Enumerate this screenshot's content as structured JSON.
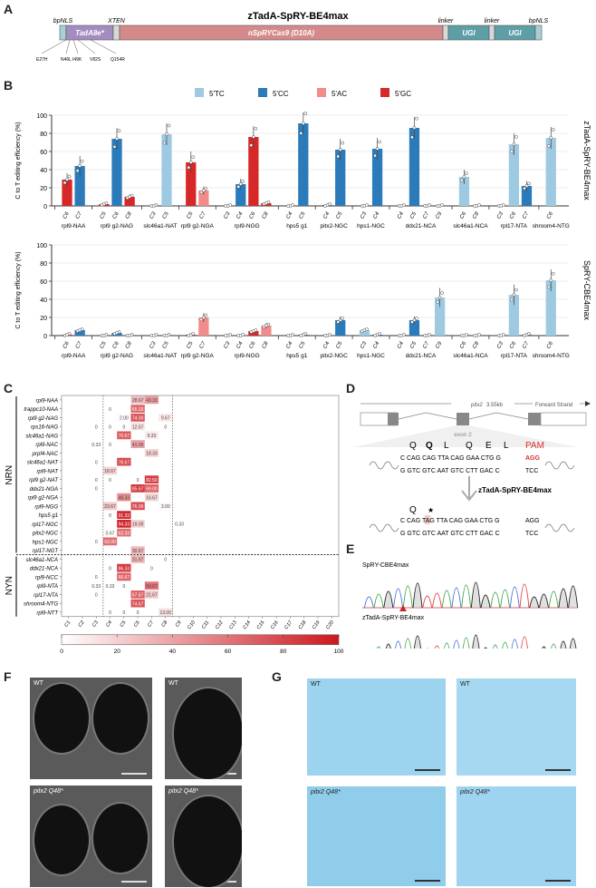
{
  "panels": {
    "A": {
      "label": "A",
      "title": "zTadA-SpRY-BE4max",
      "segments": [
        {
          "name": "bpNLS",
          "label": "",
          "color": "#a8d0d4",
          "top_label": "bpNLS"
        },
        {
          "name": "TadA8e",
          "label": "TadA8e*",
          "color": "#a58cc0",
          "top_label": ""
        },
        {
          "name": "XTEN",
          "label": "",
          "color": "#d8d8d8",
          "top_label": "XTEN"
        },
        {
          "name": "nSpRYCas9",
          "label": "nSpRYCas9 (D10A)",
          "color": "#d48a8a",
          "top_label": ""
        },
        {
          "name": "linker1",
          "label": "",
          "color": "#d8d8d8",
          "top_label": "linker"
        },
        {
          "name": "UGI1",
          "label": "UGI",
          "color": "#5e9ea6",
          "top_label": ""
        },
        {
          "name": "linker2",
          "label": "",
          "color": "#d8d8d8",
          "top_label": "linker"
        },
        {
          "name": "UGI2",
          "label": "UGI",
          "color": "#5e9ea6",
          "top_label": ""
        },
        {
          "name": "bpNLS2",
          "label": "",
          "color": "#a8d0d4",
          "top_label": "bpNLS"
        }
      ],
      "mutations": [
        "E27H",
        "N46L",
        "I49K",
        "V82S",
        "Q154R"
      ]
    },
    "B": {
      "label": "B"
    },
    "C": {
      "label": "C"
    },
    "D": {
      "label": "D",
      "gene_label": "pitx2",
      "gene_size": "3.55kb",
      "strand": "Forward Strand",
      "exon_label": "exon 2",
      "aa_top": [
        "Q",
        "Q",
        "L",
        "Q",
        "E",
        "L"
      ],
      "pam_label": "PAM",
      "seq_top_wt": "C CAG CAG TTA CAG GAA CTG G",
      "pam_seq": "AGG",
      "seq_bot_wt": "G GTC GTC AAT GTC CTT GAC C",
      "pam_bot": "TCC",
      "arrow_label": "zTadA-SpRY-BE4max",
      "aa_mut": [
        "Q",
        "★"
      ],
      "seq_top_mut": "C CAG TAG TTA CAG GAA CTG G",
      "pam_seq_mut": "AGG",
      "seq_bot_mut": "G GTC GTC AAT GTC CTT GAC C",
      "pam_bot_mut": "TCC",
      "pam_color": "#d32f2f"
    },
    "E": {
      "label": "E",
      "traces": [
        {
          "title": "SpRY-CBE4max"
        },
        {
          "title": "zTadA-SpRY-BE4max"
        }
      ],
      "base_colors": {
        "A": "#3fa84a",
        "C": "#4a6fd6",
        "G": "#222222",
        "T": "#e04040"
      }
    },
    "F": {
      "label": "F",
      "images": [
        {
          "tag": "WT",
          "view": "ventral"
        },
        {
          "tag": "WT",
          "view": "lateral",
          "annot": "ac"
        },
        {
          "tag": "pitx2 Q48*",
          "view": "ventral"
        },
        {
          "tag": "pitx2 Q48*",
          "view": "lateral",
          "annot": "ac"
        }
      ]
    },
    "G": {
      "label": "G",
      "images": [
        {
          "tag": "WT",
          "view": "lateral",
          "annot": "mc"
        },
        {
          "tag": "WT",
          "view": "ventral"
        },
        {
          "tag": "pitx2 Q48*",
          "view": "lateral",
          "annot": "mc"
        },
        {
          "tag": "pitx2 Q48*",
          "view": "ventral"
        }
      ]
    }
  },
  "chart_data": [
    {
      "id": "B-top",
      "type": "bar",
      "title": "zTadA-SpRY-BE4max",
      "ylabel": "C to T editing efficiency (%)",
      "ylim": [
        0,
        100
      ],
      "yticks": [
        0,
        20,
        40,
        60,
        80,
        100
      ],
      "grid": true,
      "legend": {
        "placement": "top",
        "entries": [
          {
            "label": "5'TC",
            "color": "#9ecae1"
          },
          {
            "label": "5'CC",
            "color": "#2b7bba"
          },
          {
            "label": "5'AC",
            "color": "#f28b8b"
          },
          {
            "label": "5'GC",
            "color": "#d62828"
          }
        ]
      },
      "groups": [
        {
          "name": "rpl9-NAA",
          "bars": [
            {
              "pos": "C6",
              "ctx": "GC",
              "v": 29
            },
            {
              "pos": "C7",
              "ctx": "CC",
              "v": 44
            }
          ]
        },
        {
          "name": "rpl9 g2-NAG",
          "bars": [
            {
              "pos": "C5",
              "ctx": "GC",
              "v": 2
            },
            {
              "pos": "C6",
              "ctx": "CC",
              "v": 74
            },
            {
              "pos": "C8",
              "ctx": "GC",
              "v": 10
            }
          ]
        },
        {
          "name": "slc46a1-NAT",
          "bars": [
            {
              "pos": "C3",
              "ctx": "TC",
              "v": 0
            },
            {
              "pos": "C5",
              "ctx": "TC",
              "v": 79
            }
          ]
        },
        {
          "name": "rpl9 g2-NGA",
          "bars": [
            {
              "pos": "C5",
              "ctx": "GC",
              "v": 48
            },
            {
              "pos": "C7",
              "ctx": "AC",
              "v": 17
            }
          ]
        },
        {
          "name": "rpl9-NGG",
          "bars": [
            {
              "pos": "C3",
              "ctx": "CC",
              "v": 0
            },
            {
              "pos": "C4",
              "ctx": "CC",
              "v": 24
            },
            {
              "pos": "C6",
              "ctx": "GC",
              "v": 76
            },
            {
              "pos": "C8",
              "ctx": "GC",
              "v": 3
            }
          ]
        },
        {
          "name": "hps5 g1",
          "bars": [
            {
              "pos": "C4",
              "ctx": "CC",
              "v": 0
            },
            {
              "pos": "C5",
              "ctx": "CC",
              "v": 91
            }
          ]
        },
        {
          "name": "pitx2-NGC",
          "bars": [
            {
              "pos": "C4",
              "ctx": "CC",
              "v": 1
            },
            {
              "pos": "C5",
              "ctx": "CC",
              "v": 62
            }
          ]
        },
        {
          "name": "hps1-NGC",
          "bars": [
            {
              "pos": "C3",
              "ctx": "CC",
              "v": 0
            },
            {
              "pos": "C4",
              "ctx": "CC",
              "v": 63
            }
          ]
        },
        {
          "name": "ddx21-NCA",
          "bars": [
            {
              "pos": "C4",
              "ctx": "CC",
              "v": 0
            },
            {
              "pos": "C5",
              "ctx": "CC",
              "v": 86
            },
            {
              "pos": "C7",
              "ctx": "CC",
              "v": 0
            },
            {
              "pos": "C9",
              "ctx": "CC",
              "v": 0
            }
          ]
        },
        {
          "name": "slc46a1-NCA",
          "bars": [
            {
              "pos": "C6",
              "ctx": "TC",
              "v": 32
            },
            {
              "pos": "C8",
              "ctx": "TC",
              "v": 0
            }
          ]
        },
        {
          "name": "rpl17-NTA",
          "bars": [
            {
              "pos": "C3",
              "ctx": "TC",
              "v": 0
            },
            {
              "pos": "C6",
              "ctx": "TC",
              "v": 68
            },
            {
              "pos": "C7",
              "ctx": "CC",
              "v": 22
            }
          ]
        },
        {
          "name": "shroom4-NTG",
          "bars": [
            {
              "pos": "C6",
              "ctx": "TC",
              "v": 75
            }
          ]
        }
      ]
    },
    {
      "id": "B-bottom",
      "type": "bar",
      "title": "SpRY-CBE4max",
      "ylabel": "C to T editing efficiency (%)",
      "ylim": [
        0,
        100
      ],
      "yticks": [
        0,
        20,
        40,
        60,
        80,
        100
      ],
      "grid": true,
      "groups": [
        {
          "name": "rpl9-NAA",
          "bars": [
            {
              "pos": "C6",
              "ctx": "GC",
              "v": 1
            },
            {
              "pos": "C7",
              "ctx": "CC",
              "v": 6
            }
          ]
        },
        {
          "name": "rpl9 g2-NAG",
          "bars": [
            {
              "pos": "C5",
              "ctx": "GC",
              "v": 0
            },
            {
              "pos": "C6",
              "ctx": "CC",
              "v": 3
            },
            {
              "pos": "C8",
              "ctx": "GC",
              "v": 0
            }
          ]
        },
        {
          "name": "slc46a1-NAT",
          "bars": [
            {
              "pos": "C3",
              "ctx": "TC",
              "v": 0
            },
            {
              "pos": "C5",
              "ctx": "TC",
              "v": 0
            }
          ]
        },
        {
          "name": "rpl9 g2-NGA",
          "bars": [
            {
              "pos": "C5",
              "ctx": "GC",
              "v": 1
            },
            {
              "pos": "C7",
              "ctx": "AC",
              "v": 20
            }
          ]
        },
        {
          "name": "rpl9-NGG",
          "bars": [
            {
              "pos": "C3",
              "ctx": "CC",
              "v": 0
            },
            {
              "pos": "C4",
              "ctx": "CC",
              "v": 0
            },
            {
              "pos": "C6",
              "ctx": "GC",
              "v": 5
            },
            {
              "pos": "C8",
              "ctx": "AC",
              "v": 11
            }
          ]
        },
        {
          "name": "hps5 g1",
          "bars": [
            {
              "pos": "C4",
              "ctx": "CC",
              "v": 0
            },
            {
              "pos": "C5",
              "ctx": "CC",
              "v": 1
            }
          ]
        },
        {
          "name": "pitx2-NGC",
          "bars": [
            {
              "pos": "C4",
              "ctx": "CC",
              "v": 0
            },
            {
              "pos": "C5",
              "ctx": "CC",
              "v": 17
            }
          ]
        },
        {
          "name": "hps1-NGC",
          "bars": [
            {
              "pos": "C3",
              "ctx": "TC",
              "v": 6
            },
            {
              "pos": "C4",
              "ctx": "CC",
              "v": 1
            }
          ]
        },
        {
          "name": "ddx21-NCA",
          "bars": [
            {
              "pos": "C4",
              "ctx": "CC",
              "v": 0
            },
            {
              "pos": "C5",
              "ctx": "CC",
              "v": 17
            },
            {
              "pos": "C7",
              "ctx": "CC",
              "v": 0
            },
            {
              "pos": "C9",
              "ctx": "TC",
              "v": 42
            }
          ]
        },
        {
          "name": "slc46a1-NCA",
          "bars": [
            {
              "pos": "C6",
              "ctx": "TC",
              "v": 0
            },
            {
              "pos": "C8",
              "ctx": "TC",
              "v": 0
            }
          ]
        },
        {
          "name": "rpl17-NTA",
          "bars": [
            {
              "pos": "C3",
              "ctx": "TC",
              "v": 0
            },
            {
              "pos": "C6",
              "ctx": "TC",
              "v": 45
            },
            {
              "pos": "C7",
              "ctx": "CC",
              "v": 1
            }
          ]
        },
        {
          "name": "shroom4-NTG",
          "bars": [
            {
              "pos": "C6",
              "ctx": "TC",
              "v": 61
            }
          ]
        }
      ]
    },
    {
      "id": "C",
      "type": "heatmap",
      "xlabels": [
        "C1",
        "C2",
        "C3",
        "C4",
        "C5",
        "C6",
        "C7",
        "C8",
        "C9",
        "C10",
        "C11",
        "C12",
        "C13",
        "C14",
        "C15",
        "C16",
        "C17",
        "C18",
        "C19",
        "C20"
      ],
      "group_labels": [
        "NRN",
        "NYN"
      ],
      "colorbar": {
        "min": 0,
        "max": 100,
        "ticks": [
          0,
          20,
          40,
          60,
          80,
          100
        ]
      },
      "rows": [
        {
          "name": "rpl9-NAA",
          "group": "NRN",
          "cells": {
            "C6": "28.67",
            "C7": "43.33"
          }
        },
        {
          "name": "trappc10-NAA",
          "group": "NRN",
          "cells": {
            "C4": "0",
            "C6": "65.33"
          }
        },
        {
          "name": "rpl9 g2-NAG",
          "group": "NRN",
          "cells": {
            "C5": "2.00",
            "C6": "74.00",
            "C8": "9.67"
          }
        },
        {
          "name": "rps16-NAG",
          "group": "NRN",
          "cells": {
            "C3": "0",
            "C4": "0",
            "C5": "0",
            "C6": "12.67",
            "C8": "0"
          }
        },
        {
          "name": "slc46a1-NAG",
          "group": "NRN",
          "cells": {
            "C5": "70.67",
            "C7": "9.33"
          }
        },
        {
          "name": "rpl9-NAC",
          "group": "NRN",
          "cells": {
            "C3": "0.33",
            "C4": "0",
            "C6": "41.00"
          }
        },
        {
          "name": "prpf4-NAC",
          "group": "NRN",
          "cells": {
            "C7": "18.33"
          }
        },
        {
          "name": "slc46a1-NAT",
          "group": "NRN",
          "cells": {
            "C3": "0",
            "C5": "78.67"
          }
        },
        {
          "name": "rpl9-NAT",
          "group": "NRN",
          "cells": {
            "C4": "18.67"
          }
        },
        {
          "name": "rpl9 g2-NAT",
          "group": "NRN",
          "cells": {
            "C3": "0",
            "C4": "0",
            "C6": "0",
            "C7": "82.50"
          }
        },
        {
          "name": "ddx21-NGA",
          "group": "NRN",
          "cells": {
            "C3": "0",
            "C6": "85.67",
            "C7": "69.00"
          }
        },
        {
          "name": "rpl9 g2-NGA",
          "group": "NRN",
          "cells": {
            "C5": "48.33",
            "C7": "16.67"
          }
        },
        {
          "name": "rpl9-NGG",
          "group": "NRN",
          "cells": {
            "C4": "23.67",
            "C6": "76.00",
            "C8": "3.00"
          }
        },
        {
          "name": "hps5 g1",
          "group": "NRN",
          "cells": {
            "C4": "0",
            "C5": "91.33"
          }
        },
        {
          "name": "rpl17-NGC",
          "group": "NRN",
          "cells": {
            "C5": "94.33",
            "C6": "19.00",
            "C9": "0.33"
          }
        },
        {
          "name": "pitx2-NGC",
          "group": "NRN",
          "cells": {
            "C4": "0.67",
            "C5": "62.33"
          }
        },
        {
          "name": "hps1-NGC",
          "group": "NRN",
          "cells": {
            "C3": "0",
            "C4": "63.00"
          }
        },
        {
          "name": "rpl17-NGT",
          "group": "NRN",
          "cells": {
            "C6": "30.67"
          }
        },
        {
          "name": "slc46a1-NCA",
          "group": "NYN",
          "cells": {
            "C6": "31.67",
            "C8": "0"
          }
        },
        {
          "name": "ddx21-NCA",
          "group": "NYN",
          "cells": {
            "C4": "0",
            "C5": "86.33",
            "C7": "0"
          }
        },
        {
          "name": "rpl9-NCC",
          "group": "NYN",
          "cells": {
            "C3": "0",
            "C5": "66.67"
          }
        },
        {
          "name": "rpl9-NTA",
          "group": "NYN",
          "cells": {
            "C3": "0.33",
            "C4": "0.33",
            "C5": "0",
            "C7": "59.67"
          }
        },
        {
          "name": "rpl17-NTA",
          "group": "NYN",
          "cells": {
            "C3": "0",
            "C6": "67.67",
            "C7": "21.67"
          }
        },
        {
          "name": "shroom4-NTG",
          "group": "NYN",
          "cells": {
            "C6": "74.67"
          }
        },
        {
          "name": "rpl9-NTT",
          "group": "NYN",
          "cells": {
            "C4": "0",
            "C5": "0",
            "C6": "0",
            "C8": "13.00"
          }
        }
      ]
    }
  ]
}
